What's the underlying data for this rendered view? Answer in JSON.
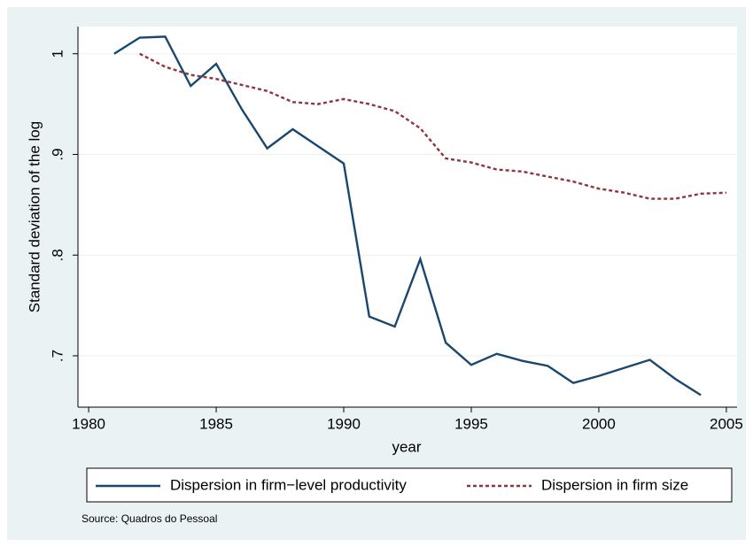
{
  "chart_data": {
    "type": "line",
    "x": [
      1981,
      1982,
      1983,
      1984,
      1985,
      1986,
      1987,
      1988,
      1989,
      1990,
      1991,
      1992,
      1993,
      1994,
      1995,
      1996,
      1997,
      1998,
      1999,
      2000,
      2001,
      2002,
      2003,
      2004,
      2005
    ],
    "series": [
      {
        "name": "Dispersion in firm−level productivity",
        "color": "#1a476f",
        "dash": "solid",
        "values": [
          1.0,
          1.016,
          1.017,
          0.968,
          0.99,
          0.945,
          0.906,
          0.925,
          0.908,
          0.891,
          0.739,
          0.729,
          0.796,
          0.713,
          0.691,
          0.702,
          0.695,
          0.69,
          0.673,
          0.68,
          0.688,
          0.696,
          0.677,
          0.661,
          null
        ]
      },
      {
        "name": "Dispersion in firm size",
        "color": "#90353b",
        "dash": "dashed",
        "values": [
          null,
          1.0,
          0.987,
          0.979,
          0.975,
          0.969,
          0.963,
          0.952,
          0.95,
          0.955,
          0.95,
          0.943,
          0.926,
          0.896,
          0.892,
          0.885,
          0.883,
          0.878,
          0.873,
          0.866,
          0.862,
          0.856,
          0.856,
          0.861,
          0.862
        ]
      }
    ],
    "x_label": "year",
    "y_label": "Standard deviation of the log",
    "note": "Source: Quadros do Pessoal",
    "xlim": [
      1979.58,
      2005.42
    ],
    "xticks": [
      1980,
      1985,
      1990,
      1995,
      2000,
      2005
    ],
    "ylim": [
      0.649,
      1.027
    ],
    "yticks": [
      {
        "value": 0.7,
        "label": ".7"
      },
      {
        "value": 0.8,
        "label": ".8"
      },
      {
        "value": 0.9,
        "label": ".9"
      },
      1
    ],
    "grid": true,
    "legend": "bottom"
  }
}
